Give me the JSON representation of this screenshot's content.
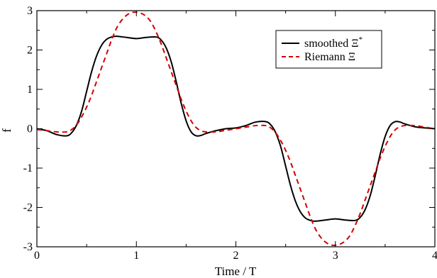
{
  "chart_data": {
    "type": "line",
    "title": "",
    "xlabel": "Time / T",
    "ylabel": "f",
    "xlim": [
      0,
      4
    ],
    "ylim": [
      -3,
      3
    ],
    "xticks": [
      0,
      1,
      2,
      3,
      4
    ],
    "yticks": [
      -3,
      -2,
      -1,
      0,
      1,
      2,
      3
    ],
    "xtick_labels": [
      "0",
      "1",
      "2",
      "3",
      "4"
    ],
    "ytick_labels": [
      "-3",
      "-2",
      "-1",
      "0",
      "1",
      "2",
      "3"
    ],
    "grid": false,
    "legend_position": "top-right",
    "legend": {
      "smoothed_text": "smoothed Ξ",
      "smoothed_sup": "*",
      "riemann_text": "Riemann Ξ"
    },
    "series": [
      {
        "id": "smoothed",
        "style": "solid",
        "color": "#000000",
        "x": [
          0,
          0.1,
          0.2,
          0.3,
          0.35,
          0.4,
          0.45,
          0.5,
          0.55,
          0.6,
          0.65,
          0.7,
          0.75,
          0.8,
          0.9,
          1.0,
          1.1,
          1.2,
          1.25,
          1.3,
          1.35,
          1.4,
          1.45,
          1.5,
          1.55,
          1.6,
          1.65,
          1.7,
          1.8,
          1.9,
          2.0,
          2.1,
          2.2,
          2.3,
          2.35,
          2.4,
          2.45,
          2.5,
          2.55,
          2.6,
          2.65,
          2.7,
          2.75,
          2.8,
          2.9,
          3.0,
          3.1,
          3.2,
          3.25,
          3.3,
          3.35,
          3.4,
          3.45,
          3.5,
          3.55,
          3.6,
          3.65,
          3.7,
          3.8,
          3.9,
          4.0
        ],
        "y": [
          0.0,
          -0.05,
          -0.15,
          -0.18,
          -0.1,
          0.1,
          0.45,
          0.95,
          1.45,
          1.85,
          2.12,
          2.27,
          2.33,
          2.35,
          2.32,
          2.29,
          2.32,
          2.33,
          2.25,
          2.05,
          1.7,
          1.2,
          0.65,
          0.2,
          -0.08,
          -0.18,
          -0.17,
          -0.12,
          -0.05,
          0.0,
          0.02,
          0.08,
          0.17,
          0.18,
          0.1,
          -0.1,
          -0.45,
          -0.95,
          -1.45,
          -1.85,
          -2.12,
          -2.27,
          -2.33,
          -2.35,
          -2.32,
          -2.29,
          -2.32,
          -2.33,
          -2.25,
          -2.05,
          -1.7,
          -1.2,
          -0.65,
          -0.2,
          0.08,
          0.18,
          0.17,
          0.12,
          0.05,
          0.02,
          0.0
        ]
      },
      {
        "id": "riemann",
        "style": "dashed",
        "color": "#d40000",
        "x": [
          0,
          0.1,
          0.2,
          0.3,
          0.35,
          0.4,
          0.45,
          0.5,
          0.55,
          0.6,
          0.65,
          0.7,
          0.75,
          0.8,
          0.85,
          0.9,
          0.95,
          1.0,
          1.05,
          1.1,
          1.15,
          1.2,
          1.25,
          1.3,
          1.35,
          1.4,
          1.45,
          1.5,
          1.55,
          1.6,
          1.65,
          1.7,
          1.8,
          1.9,
          2.0,
          2.1,
          2.2,
          2.3,
          2.35,
          2.4,
          2.45,
          2.5,
          2.55,
          2.6,
          2.65,
          2.7,
          2.75,
          2.8,
          2.85,
          2.9,
          2.95,
          3.0,
          3.05,
          3.1,
          3.15,
          3.2,
          3.25,
          3.3,
          3.35,
          3.4,
          3.45,
          3.5,
          3.55,
          3.6,
          3.65,
          3.7,
          3.8,
          3.9,
          4.0
        ],
        "y": [
          -0.02,
          -0.05,
          -0.08,
          -0.08,
          -0.02,
          0.1,
          0.3,
          0.55,
          0.85,
          1.2,
          1.55,
          1.9,
          2.25,
          2.55,
          2.75,
          2.88,
          2.95,
          2.96,
          2.93,
          2.85,
          2.7,
          2.45,
          2.15,
          1.8,
          1.45,
          1.1,
          0.75,
          0.45,
          0.2,
          0.03,
          -0.05,
          -0.08,
          -0.08,
          -0.04,
          0.0,
          0.04,
          0.08,
          0.08,
          0.02,
          -0.1,
          -0.3,
          -0.55,
          -0.85,
          -1.2,
          -1.55,
          -1.9,
          -2.25,
          -2.55,
          -2.75,
          -2.88,
          -2.95,
          -2.96,
          -2.93,
          -2.85,
          -2.7,
          -2.45,
          -2.15,
          -1.8,
          -1.45,
          -1.1,
          -0.75,
          -0.45,
          -0.2,
          -0.03,
          0.05,
          0.08,
          0.08,
          0.04,
          0.0
        ]
      }
    ]
  }
}
